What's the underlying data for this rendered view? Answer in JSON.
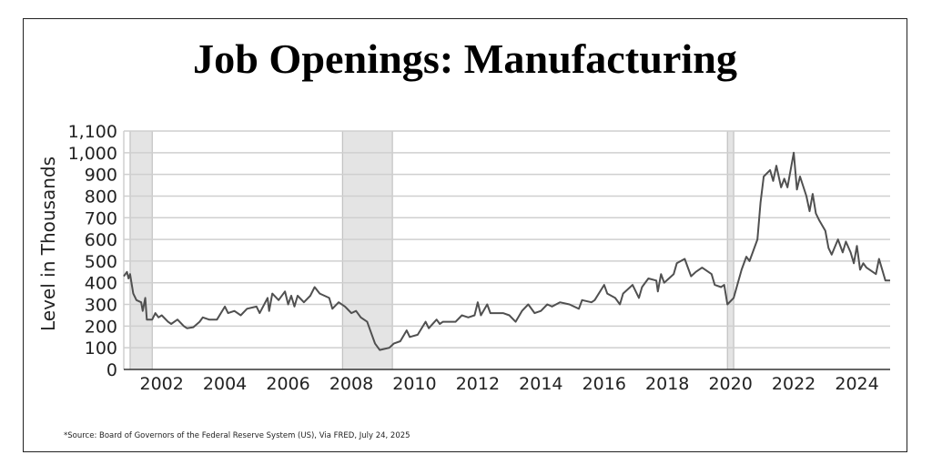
{
  "chart_data": {
    "type": "line",
    "title": "Job Openings: Manufacturing",
    "ylabel": "Level in Thousands",
    "xlabel": "",
    "ylim": [
      0,
      1100
    ],
    "xlim": [
      2001.0,
      2025.25
    ],
    "yticks": [
      0,
      100,
      200,
      300,
      400,
      500,
      600,
      700,
      800,
      900,
      1000,
      1100
    ],
    "ytick_labels": [
      "0",
      "100",
      "200",
      "300",
      "400",
      "500",
      "600",
      "700",
      "800",
      "900",
      "1,000",
      "1,100"
    ],
    "xticks": [
      2002,
      2004,
      2006,
      2008,
      2010,
      2012,
      2014,
      2016,
      2018,
      2020,
      2022,
      2024
    ],
    "xtick_labels": [
      "2002",
      "2004",
      "2006",
      "2008",
      "2010",
      "2012",
      "2014",
      "2016",
      "2018",
      "2020",
      "2022",
      "2024"
    ],
    "grid": true,
    "recessions": [
      [
        2001.2,
        2001.9
      ],
      [
        2007.92,
        2009.5
      ],
      [
        2020.1,
        2020.3
      ]
    ],
    "line_color": "#505050",
    "recession_color": "#e4e4e4",
    "series": [
      {
        "name": "Job Openings: Manufacturing",
        "x": [
          2001.0,
          2001.1,
          2001.15,
          2001.2,
          2001.3,
          2001.4,
          2001.55,
          2001.6,
          2001.68,
          2001.73,
          2001.9,
          2002.0,
          2002.1,
          2002.2,
          2002.4,
          2002.5,
          2002.7,
          2002.9,
          2003.0,
          2003.2,
          2003.4,
          2003.5,
          2003.7,
          2003.95,
          2004.2,
          2004.3,
          2004.5,
          2004.7,
          2004.9,
          2005.2,
          2005.3,
          2005.55,
          2005.6,
          2005.7,
          2005.9,
          2006.1,
          2006.2,
          2006.3,
          2006.4,
          2006.5,
          2006.7,
          2006.9,
          2007.04,
          2007.2,
          2007.5,
          2007.6,
          2007.8,
          2008.0,
          2008.2,
          2008.35,
          2008.5,
          2008.7,
          2008.8,
          2008.95,
          2009.1,
          2009.4,
          2009.55,
          2009.75,
          2009.95,
          2010.05,
          2010.3,
          2010.55,
          2010.65,
          2010.9,
          2011.0,
          2011.1,
          2011.5,
          2011.7,
          2011.9,
          2012.1,
          2012.2,
          2012.3,
          2012.5,
          2012.6,
          2012.9,
          2013.0,
          2013.2,
          2013.4,
          2013.6,
          2013.8,
          2014.0,
          2014.2,
          2014.4,
          2014.55,
          2014.8,
          2015.1,
          2015.4,
          2015.5,
          2015.8,
          2015.9,
          2016.2,
          2016.3,
          2016.55,
          2016.7,
          2016.8,
          2017.1,
          2017.3,
          2017.4,
          2017.6,
          2017.85,
          2017.9,
          2018.0,
          2018.1,
          2018.4,
          2018.5,
          2018.75,
          2018.95,
          2019.1,
          2019.3,
          2019.6,
          2019.7,
          2019.9,
          2020.0,
          2020.1,
          2020.3,
          2020.55,
          2020.7,
          2020.8,
          2020.9,
          2021.05,
          2021.15,
          2021.25,
          2021.45,
          2021.55,
          2021.65,
          2021.8,
          2021.9,
          2022.0,
          2022.2,
          2022.3,
          2022.4,
          2022.6,
          2022.7,
          2022.8,
          2022.9,
          2023.0,
          2023.2,
          2023.3,
          2023.4,
          2023.6,
          2023.75,
          2023.85,
          2024.0,
          2024.1,
          2024.2,
          2024.3,
          2024.4,
          2024.5,
          2024.8,
          2024.9,
          2025.1,
          2025.25
        ],
        "values": [
          430,
          450,
          420,
          440,
          350,
          320,
          310,
          270,
          330,
          230,
          230,
          260,
          240,
          250,
          220,
          210,
          230,
          200,
          190,
          195,
          220,
          240,
          230,
          230,
          290,
          260,
          270,
          250,
          280,
          290,
          260,
          330,
          270,
          350,
          320,
          360,
          300,
          340,
          290,
          340,
          310,
          340,
          380,
          350,
          330,
          280,
          310,
          290,
          260,
          270,
          240,
          220,
          180,
          120,
          90,
          100,
          120,
          130,
          180,
          150,
          160,
          220,
          190,
          230,
          210,
          220,
          220,
          250,
          240,
          250,
          310,
          250,
          300,
          260,
          260,
          260,
          250,
          220,
          270,
          300,
          260,
          270,
          300,
          290,
          310,
          300,
          280,
          320,
          310,
          320,
          390,
          350,
          330,
          300,
          350,
          390,
          330,
          380,
          420,
          410,
          360,
          440,
          400,
          440,
          490,
          510,
          430,
          450,
          470,
          440,
          390,
          380,
          390,
          300,
          330,
          460,
          520,
          500,
          540,
          600,
          770,
          890,
          920,
          870,
          940,
          840,
          880,
          840,
          1000,
          830,
          890,
          800,
          730,
          810,
          720,
          690,
          640,
          560,
          530,
          600,
          540,
          590,
          540,
          490,
          570,
          460,
          490,
          470,
          440,
          510,
          410,
          410
        ]
      }
    ]
  },
  "footer": {
    "source": "*Source: Board of Governors of the Federal Reserve System (US), Via FRED, July 24, 2025"
  }
}
